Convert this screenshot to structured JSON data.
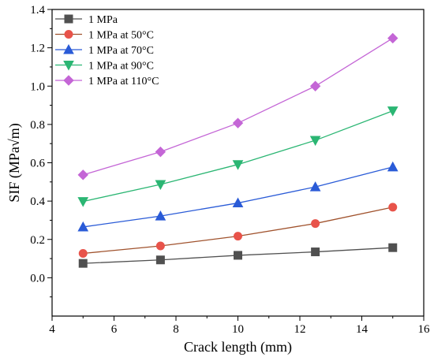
{
  "chart_data": {
    "type": "line",
    "title": "",
    "xlabel": "Crack length (mm)",
    "ylabel": "SIF (MPa√m)",
    "xlim": [
      4,
      16
    ],
    "ylim": [
      -0.2,
      1.4
    ],
    "xticks": [
      "4",
      "6",
      "8",
      "10",
      "12",
      "14",
      "16"
    ],
    "yticks": [
      "0.0",
      "0.2",
      "0.4",
      "0.6",
      "0.8",
      "1.0",
      "1.2",
      "1.4"
    ],
    "grid": false,
    "legend_position": "top-left",
    "x": [
      5,
      7.5,
      10,
      12.5,
      15
    ],
    "series": [
      {
        "name": "1 MPa",
        "color": "#505050",
        "marker": "square",
        "values": [
          0.075,
          0.093,
          0.117,
          0.135,
          0.157
        ]
      },
      {
        "name": "1 MPa at 50°C",
        "color": "#a0522d",
        "marker_color": "#e8534a",
        "marker": "circle",
        "values": [
          0.127,
          0.166,
          0.217,
          0.283,
          0.368
        ]
      },
      {
        "name": "1 MPa at 70°C",
        "color": "#2a5bd7",
        "marker": "triangle-up",
        "values": [
          0.265,
          0.322,
          0.39,
          0.474,
          0.578
        ]
      },
      {
        "name": "1 MPa at 90°C",
        "color": "#2bb673",
        "marker": "triangle-down",
        "values": [
          0.398,
          0.487,
          0.591,
          0.717,
          0.871
        ]
      },
      {
        "name": "1 MPa at 110°C",
        "color": "#c466d6",
        "marker": "diamond",
        "values": [
          0.537,
          0.657,
          0.807,
          1.0,
          1.25
        ]
      }
    ]
  }
}
